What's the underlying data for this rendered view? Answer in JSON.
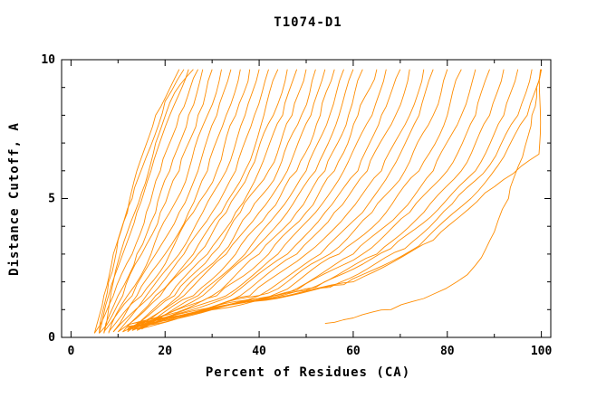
{
  "chart_data": {
    "type": "line",
    "title": "T1074-D1",
    "xlabel": "Percent of Residues (CA)",
    "ylabel": "Distance Cutoff, A",
    "xlim": [
      0,
      100
    ],
    "ylim": [
      0,
      10
    ],
    "x_ticks": [
      0,
      20,
      40,
      60,
      80,
      100
    ],
    "x_minor_ticks": [
      10,
      30,
      50,
      70,
      90
    ],
    "y_ticks": [
      0,
      5,
      10
    ],
    "y_minor_ticks": [
      1,
      2,
      3,
      4,
      6,
      7,
      8,
      9
    ],
    "grid": false,
    "legend": "none",
    "line_color": "#ff8c00",
    "axis_color": "#000000",
    "series": [
      [
        [
          5,
          0.15
        ],
        [
          7,
          1.5
        ],
        [
          9,
          3
        ],
        [
          12,
          4.5
        ],
        [
          14,
          6
        ],
        [
          18,
          8
        ],
        [
          23,
          9.65
        ]
      ],
      [
        [
          6,
          0.15
        ],
        [
          8,
          1.5
        ],
        [
          11,
          3
        ],
        [
          14,
          4.5
        ],
        [
          17,
          6
        ],
        [
          21,
          8
        ],
        [
          25,
          9.65
        ]
      ],
      [
        [
          6,
          0.15
        ],
        [
          8,
          2
        ],
        [
          10,
          3.5
        ],
        [
          13,
          5
        ],
        [
          16,
          6.5
        ],
        [
          20,
          8.5
        ],
        [
          24,
          9.65
        ]
      ],
      [
        [
          5,
          0.15
        ],
        [
          9,
          1.5
        ],
        [
          13,
          3
        ],
        [
          16,
          4.5
        ],
        [
          19,
          6
        ],
        [
          23,
          8
        ],
        [
          27,
          9.65
        ]
      ],
      [
        [
          7,
          0.15
        ],
        [
          9,
          2
        ],
        [
          12,
          3.8
        ],
        [
          15,
          5.2
        ],
        [
          18,
          7
        ],
        [
          22,
          8.8
        ],
        [
          26,
          9.65
        ]
      ],
      [
        [
          7,
          0.15
        ],
        [
          10,
          1.5
        ],
        [
          14,
          3
        ],
        [
          18,
          4.5
        ],
        [
          21,
          6
        ],
        [
          25,
          8
        ],
        [
          28,
          9.65
        ]
      ],
      [
        [
          6,
          0.15
        ],
        [
          11,
          1.5
        ],
        [
          15,
          3
        ],
        [
          19,
          4.5
        ],
        [
          23,
          6
        ],
        [
          27,
          8
        ],
        [
          30,
          9.65
        ]
      ],
      [
        [
          8,
          0.15
        ],
        [
          12,
          1.5
        ],
        [
          17,
          3
        ],
        [
          21,
          4.5
        ],
        [
          25,
          6
        ],
        [
          29,
          8
        ],
        [
          32,
          9.65
        ]
      ],
      [
        [
          7,
          0.2
        ],
        [
          13,
          1.5
        ],
        [
          18,
          3
        ],
        [
          23,
          4.5
        ],
        [
          27,
          6
        ],
        [
          31,
          8
        ],
        [
          34,
          9.65
        ]
      ],
      [
        [
          9,
          0.2
        ],
        [
          14,
          1.5
        ],
        [
          20,
          3
        ],
        [
          25,
          4.5
        ],
        [
          29,
          6
        ],
        [
          33,
          8
        ],
        [
          36,
          9.65
        ]
      ],
      [
        [
          8,
          0.2
        ],
        [
          15,
          1.5
        ],
        [
          21,
          3
        ],
        [
          26,
          4.5
        ],
        [
          31,
          6
        ],
        [
          35,
          8
        ],
        [
          38,
          9.65
        ]
      ],
      [
        [
          10,
          0.2
        ],
        [
          16,
          1.5
        ],
        [
          23,
          3
        ],
        [
          28,
          4.5
        ],
        [
          33,
          6
        ],
        [
          37,
          8
        ],
        [
          40,
          9.65
        ]
      ],
      [
        [
          9,
          0.2
        ],
        [
          17,
          1.5
        ],
        [
          24,
          3
        ],
        [
          30,
          4.5
        ],
        [
          35,
          6
        ],
        [
          39,
          8
        ],
        [
          42,
          9.65
        ]
      ],
      [
        [
          11,
          0.2
        ],
        [
          18,
          1.5
        ],
        [
          26,
          3
        ],
        [
          32,
          4.5
        ],
        [
          37,
          6
        ],
        [
          41,
          8
        ],
        [
          44,
          9.65
        ]
      ],
      [
        [
          10,
          0.2
        ],
        [
          19,
          1.5
        ],
        [
          27,
          3
        ],
        [
          33,
          4.5
        ],
        [
          38,
          6
        ],
        [
          43,
          8
        ],
        [
          46,
          9.65
        ]
      ],
      [
        [
          12,
          0.2
        ],
        [
          21,
          1.5
        ],
        [
          29,
          3
        ],
        [
          35,
          4.5
        ],
        [
          40,
          6
        ],
        [
          45,
          8
        ],
        [
          48,
          9.65
        ]
      ],
      [
        [
          11,
          0.2
        ],
        [
          22,
          1.5
        ],
        [
          30,
          3
        ],
        [
          36,
          4.5
        ],
        [
          42,
          6
        ],
        [
          47,
          8
        ],
        [
          50,
          9.65
        ]
      ],
      [
        [
          13,
          0.25
        ],
        [
          23,
          1.5
        ],
        [
          32,
          3
        ],
        [
          38,
          4.5
        ],
        [
          44,
          6
        ],
        [
          49,
          8
        ],
        [
          52,
          9.65
        ]
      ],
      [
        [
          12,
          0.25
        ],
        [
          24,
          1.5
        ],
        [
          33,
          3
        ],
        [
          40,
          4.5
        ],
        [
          46,
          6
        ],
        [
          51,
          8
        ],
        [
          54,
          9.65
        ]
      ],
      [
        [
          13,
          0.25
        ],
        [
          26,
          1.5
        ],
        [
          35,
          3
        ],
        [
          42,
          4.5
        ],
        [
          48,
          6
        ],
        [
          53,
          8
        ],
        [
          56,
          9.65
        ]
      ],
      [
        [
          14,
          0.25
        ],
        [
          27,
          1.5
        ],
        [
          37,
          3
        ],
        [
          44,
          4.5
        ],
        [
          50,
          6
        ],
        [
          55,
          8
        ],
        [
          58,
          9.65
        ]
      ],
      [
        [
          13,
          0.25
        ],
        [
          28,
          1.5
        ],
        [
          38,
          3
        ],
        [
          46,
          4.5
        ],
        [
          52,
          6
        ],
        [
          57,
          8
        ],
        [
          60,
          9.65
        ]
      ],
      [
        [
          14,
          0.3
        ],
        [
          30,
          1.5
        ],
        [
          40,
          3
        ],
        [
          48,
          4.5
        ],
        [
          54,
          6
        ],
        [
          59,
          8
        ],
        [
          62,
          9.65
        ]
      ],
      [
        [
          12,
          0.3
        ],
        [
          31,
          1.5
        ],
        [
          42,
          3
        ],
        [
          50,
          4.5
        ],
        [
          56,
          6
        ],
        [
          61,
          8
        ],
        [
          65,
          9.65
        ]
      ],
      [
        [
          14,
          0.3
        ],
        [
          33,
          1.5
        ],
        [
          44,
          3
        ],
        [
          52,
          4.5
        ],
        [
          58,
          6
        ],
        [
          64,
          8
        ],
        [
          67,
          9.65
        ]
      ],
      [
        [
          13,
          0.3
        ],
        [
          34,
          1.5
        ],
        [
          46,
          3
        ],
        [
          54,
          4.5
        ],
        [
          61,
          6
        ],
        [
          66,
          8
        ],
        [
          70,
          9.65
        ]
      ],
      [
        [
          15,
          0.3
        ],
        [
          36,
          1.5
        ],
        [
          48,
          3
        ],
        [
          56,
          4.5
        ],
        [
          63,
          6
        ],
        [
          69,
          8
        ],
        [
          72,
          9.65
        ]
      ],
      [
        [
          14,
          0.3
        ],
        [
          38,
          1.5
        ],
        [
          50,
          3
        ],
        [
          59,
          4.5
        ],
        [
          66,
          6
        ],
        [
          72,
          8
        ],
        [
          75,
          9.65
        ]
      ],
      [
        [
          15,
          0.35
        ],
        [
          40,
          1.5
        ],
        [
          53,
          3
        ],
        [
          62,
          4.5
        ],
        [
          68,
          6
        ],
        [
          74,
          8
        ],
        [
          77,
          9.65
        ]
      ],
      [
        [
          12,
          0.35
        ],
        [
          42,
          1.6
        ],
        [
          55,
          3
        ],
        [
          64,
          4.5
        ],
        [
          71,
          6
        ],
        [
          77,
          8
        ],
        [
          80,
          9.65
        ]
      ],
      [
        [
          13,
          0.35
        ],
        [
          44,
          1.6
        ],
        [
          57,
          3
        ],
        [
          67,
          4.5
        ],
        [
          74,
          6
        ],
        [
          80,
          8
        ],
        [
          83,
          9.65
        ]
      ],
      [
        [
          14,
          0.4
        ],
        [
          46,
          1.6
        ],
        [
          60,
          3
        ],
        [
          70,
          4.5
        ],
        [
          77,
          6
        ],
        [
          83,
          8
        ],
        [
          86,
          9.65
        ]
      ],
      [
        [
          12,
          0.4
        ],
        [
          48,
          1.7
        ],
        [
          62,
          3
        ],
        [
          72,
          4.5
        ],
        [
          80,
          6
        ],
        [
          86,
          8
        ],
        [
          89,
          9.65
        ]
      ],
      [
        [
          13,
          0.4
        ],
        [
          50,
          1.7
        ],
        [
          65,
          3
        ],
        [
          75,
          4.5
        ],
        [
          83,
          6
        ],
        [
          89,
          8
        ],
        [
          92,
          9.65
        ]
      ],
      [
        [
          14,
          0.45
        ],
        [
          52,
          1.8
        ],
        [
          68,
          3.2
        ],
        [
          78,
          4.6
        ],
        [
          86,
          6
        ],
        [
          92,
          8
        ],
        [
          95,
          9.65
        ]
      ],
      [
        [
          12,
          0.45
        ],
        [
          55,
          1.8
        ],
        [
          71,
          3.2
        ],
        [
          81,
          4.8
        ],
        [
          89,
          6.2
        ],
        [
          95,
          8
        ],
        [
          98,
          9.65
        ]
      ],
      [
        [
          13,
          0.5
        ],
        [
          58,
          1.9
        ],
        [
          74,
          3.3
        ],
        [
          85,
          5
        ],
        [
          92,
          6.5
        ],
        [
          97,
          8
        ],
        [
          100,
          9.65
        ]
      ],
      [
        [
          14,
          0.5
        ],
        [
          60,
          2
        ],
        [
          77,
          3.5
        ],
        [
          88,
          5.2
        ],
        [
          94,
          5.9
        ],
        [
          99.5,
          6.6
        ],
        [
          99.8,
          9.65
        ]
      ],
      [
        [
          54,
          0.5
        ],
        [
          60,
          0.7
        ],
        [
          68,
          1
        ],
        [
          75,
          1.4
        ],
        [
          82,
          2
        ],
        [
          86,
          2.6
        ],
        [
          90,
          3.8
        ],
        [
          93,
          5
        ],
        [
          96,
          6.5
        ],
        [
          98,
          8
        ],
        [
          99,
          9
        ],
        [
          100,
          9.65
        ]
      ]
    ]
  }
}
